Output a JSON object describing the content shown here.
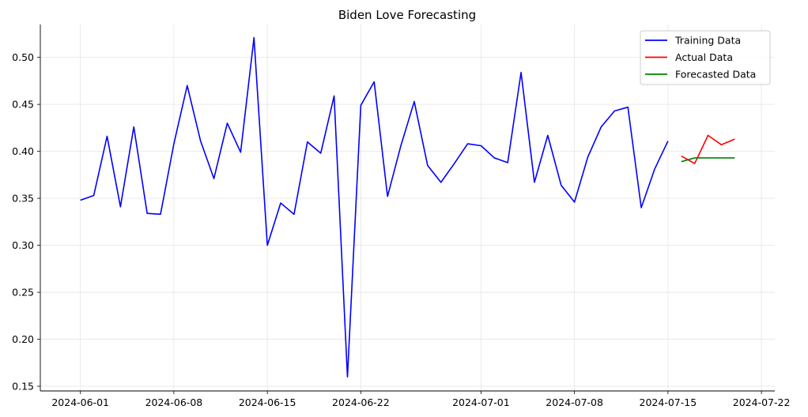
{
  "chart_data": {
    "type": "line",
    "title": "Biden Love Forecasting",
    "xlabel": "",
    "ylabel": "",
    "xlim": [
      "2024-05-29",
      "2024-07-23"
    ],
    "ylim": [
      0.145,
      0.535
    ],
    "x_ticks": [
      "2024-06-01",
      "2024-06-08",
      "2024-06-15",
      "2024-06-22",
      "2024-07-01",
      "2024-07-08",
      "2024-07-15",
      "2024-07-22"
    ],
    "y_ticks": [
      "0.15",
      "0.20",
      "0.25",
      "0.30",
      "0.35",
      "0.40",
      "0.45",
      "0.50"
    ],
    "grid": true,
    "legend_position": "top-right",
    "series": [
      {
        "name": "Training Data",
        "color": "#0000ff",
        "x": [
          "2024-06-01",
          "2024-06-02",
          "2024-06-03",
          "2024-06-04",
          "2024-06-05",
          "2024-06-06",
          "2024-06-07",
          "2024-06-08",
          "2024-06-09",
          "2024-06-10",
          "2024-06-11",
          "2024-06-12",
          "2024-06-13",
          "2024-06-14",
          "2024-06-15",
          "2024-06-16",
          "2024-06-17",
          "2024-06-18",
          "2024-06-19",
          "2024-06-20",
          "2024-06-21",
          "2024-06-22",
          "2024-06-23",
          "2024-06-24",
          "2024-06-25",
          "2024-06-26",
          "2024-06-27",
          "2024-06-28",
          "2024-06-29",
          "2024-06-30",
          "2024-07-01",
          "2024-07-02",
          "2024-07-03",
          "2024-07-04",
          "2024-07-05",
          "2024-07-06",
          "2024-07-07",
          "2024-07-08",
          "2024-07-09",
          "2024-07-10",
          "2024-07-11",
          "2024-07-12",
          "2024-07-13",
          "2024-07-14",
          "2024-07-15"
        ],
        "values": [
          0.348,
          0.353,
          0.416,
          0.341,
          0.426,
          0.334,
          0.333,
          0.408,
          0.47,
          0.411,
          0.371,
          0.43,
          0.399,
          0.521,
          0.3,
          0.345,
          0.333,
          0.41,
          0.398,
          0.459,
          0.16,
          0.449,
          0.474,
          0.352,
          0.406,
          0.453,
          0.385,
          0.367,
          0.387,
          0.408,
          0.406,
          0.393,
          0.388,
          0.484,
          0.367,
          0.417,
          0.364,
          0.346,
          0.394,
          0.426,
          0.443,
          0.447,
          0.34,
          0.381,
          0.411
        ]
      },
      {
        "name": "Actual Data",
        "color": "#ff0000",
        "x": [
          "2024-07-16",
          "2024-07-17",
          "2024-07-18",
          "2024-07-19",
          "2024-07-20"
        ],
        "values": [
          0.395,
          0.387,
          0.417,
          0.407,
          0.413
        ]
      },
      {
        "name": "Forecasted Data",
        "color": "#008000",
        "x": [
          "2024-07-16",
          "2024-07-17",
          "2024-07-18",
          "2024-07-19",
          "2024-07-20"
        ],
        "values": [
          0.389,
          0.393,
          0.393,
          0.393,
          0.393
        ]
      }
    ]
  }
}
